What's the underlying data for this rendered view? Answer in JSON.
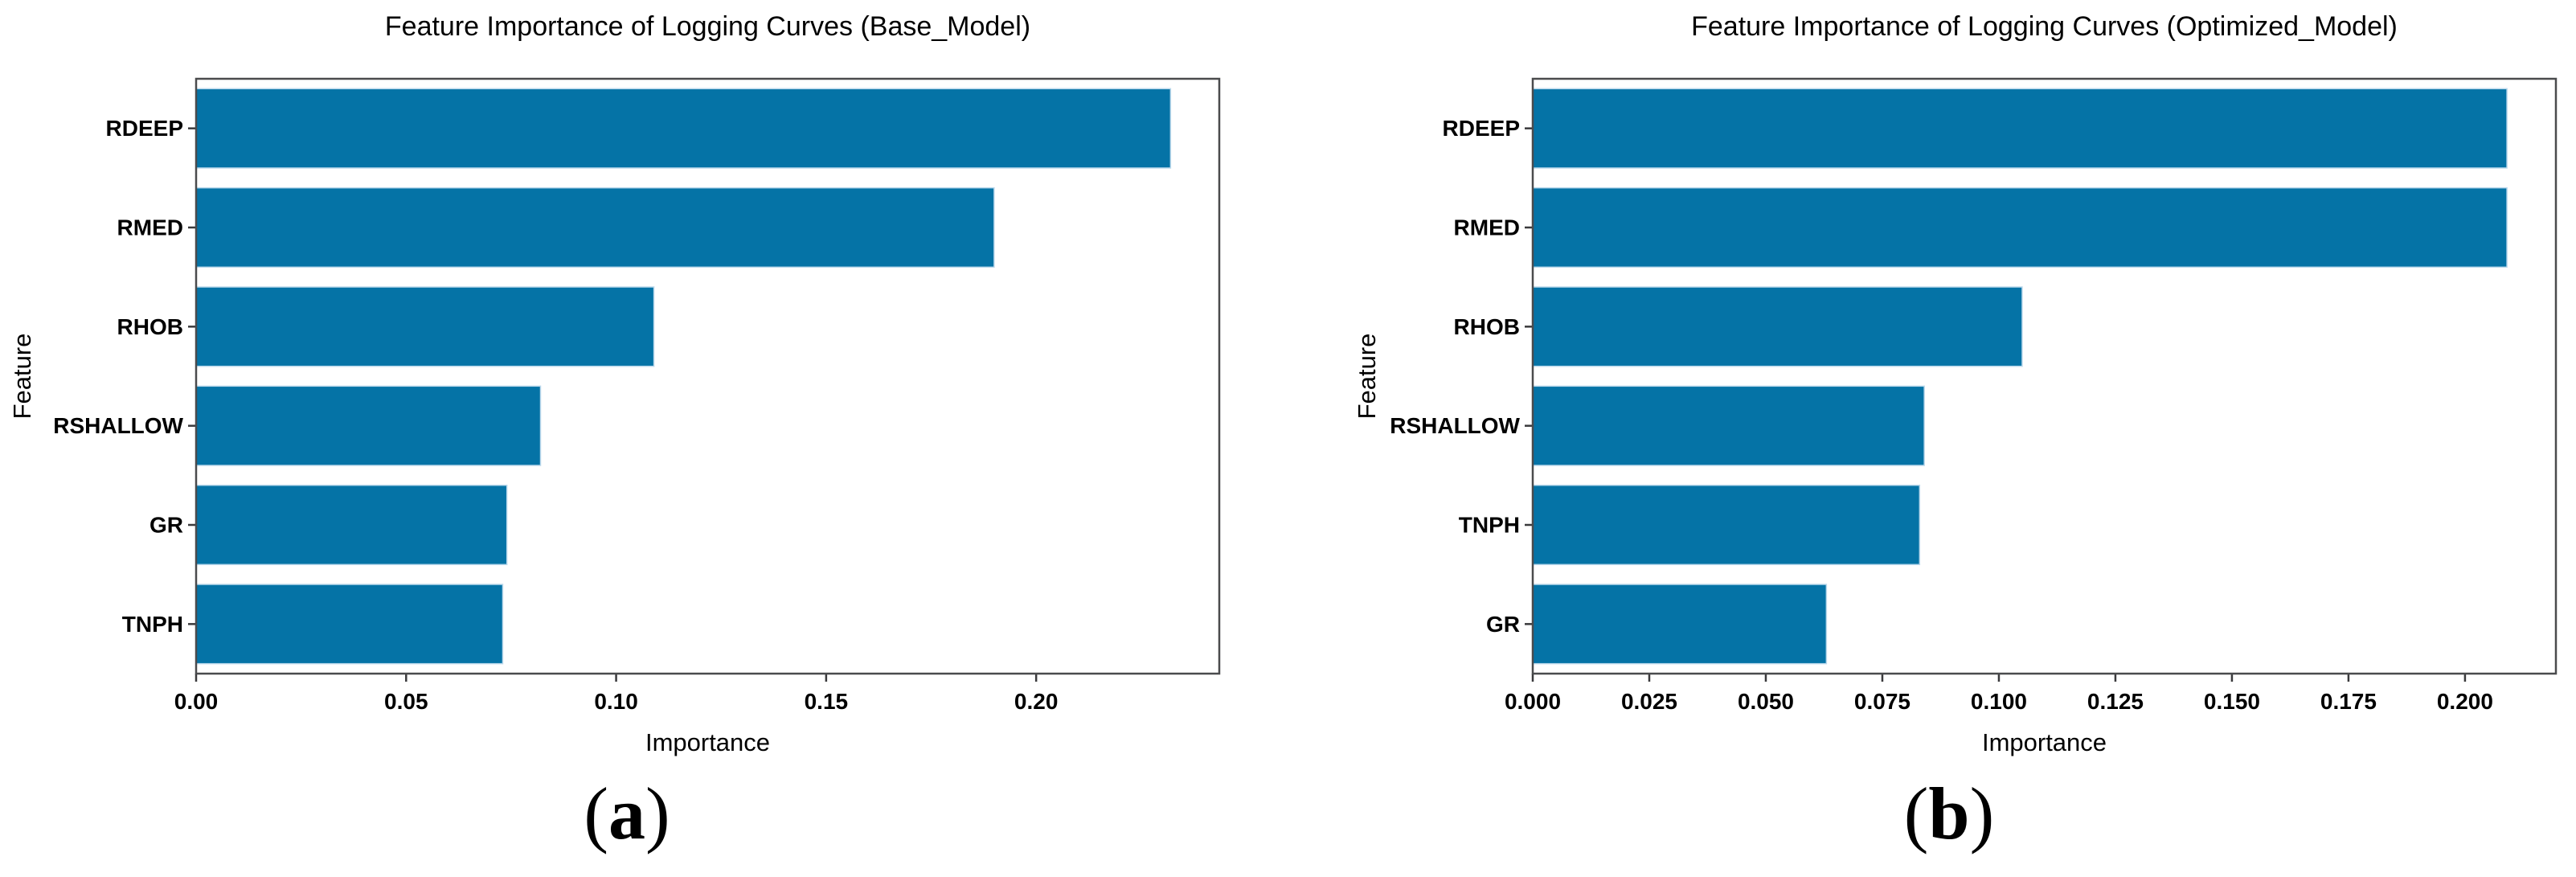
{
  "page": {
    "background": "#ffffff"
  },
  "captions": [
    {
      "open": "(",
      "letter": "a",
      "close": ")"
    },
    {
      "open": "(",
      "letter": "b",
      "close": ")"
    }
  ],
  "chart_data": [
    {
      "type": "bar",
      "orientation": "horizontal",
      "title": "Feature Importance of Logging Curves (Base_Model)",
      "xlabel": "Importance",
      "ylabel": "Feature",
      "categories": [
        "RDEEP",
        "RMED",
        "RHOB",
        "RSHALLOW",
        "GR",
        "TNPH"
      ],
      "values": [
        0.232,
        0.19,
        0.109,
        0.082,
        0.074,
        0.073
      ],
      "xlim": [
        0,
        0.2436
      ],
      "xtick_values": [
        0.0,
        0.05,
        0.1,
        0.15,
        0.2
      ],
      "xtick_labels": [
        "0.00",
        "0.05",
        "0.10",
        "0.15",
        "0.20"
      ],
      "grid": false,
      "legend": null,
      "bar_color": "#0573a6",
      "bar_edge_color": "#bcd9ec",
      "spine_color": "#4a4b4d",
      "tick_color": "#3a3a3c"
    },
    {
      "type": "bar",
      "orientation": "horizontal",
      "title": "Feature Importance of Logging Curves (Optimized_Model)",
      "xlabel": "Importance",
      "ylabel": "Feature",
      "categories": [
        "RDEEP",
        "RMED",
        "RHOB",
        "RSHALLOW",
        "TNPH",
        "GR"
      ],
      "values": [
        0.209,
        0.209,
        0.105,
        0.084,
        0.083,
        0.063
      ],
      "xlim": [
        0,
        0.2195
      ],
      "xtick_values": [
        0.0,
        0.025,
        0.05,
        0.075,
        0.1,
        0.125,
        0.15,
        0.175,
        0.2
      ],
      "xtick_labels": [
        "0.000",
        "0.025",
        "0.050",
        "0.075",
        "0.100",
        "0.125",
        "0.150",
        "0.175",
        "0.200"
      ],
      "grid": false,
      "legend": null,
      "bar_color": "#0573a6",
      "bar_edge_color": "#bcd9ec",
      "spine_color": "#4a4b4d",
      "tick_color": "#3a3a3c"
    }
  ]
}
